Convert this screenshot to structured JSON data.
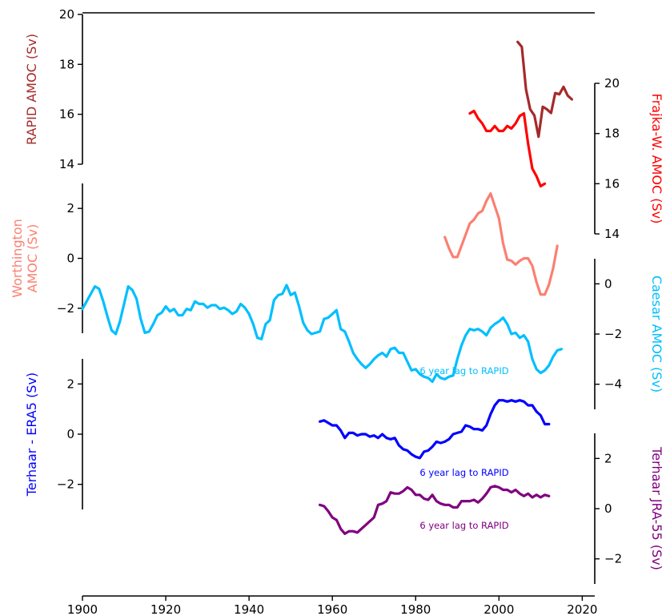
{
  "chart_data": {
    "type": "line",
    "x_axis": {
      "ticks": [
        1900,
        1920,
        1940,
        1960,
        1980,
        2000,
        2020
      ],
      "range": [
        1900,
        2023
      ]
    },
    "panels": [
      {
        "id": "rapid",
        "side": "left",
        "ylabel": "RAPID AMOC (Sv)",
        "color": "#a52a2a",
        "yrange": [
          14,
          20
        ],
        "ticks": [
          14,
          16,
          18,
          20
        ],
        "series": [
          {
            "name": "RAPID AMOC",
            "color": "#a52a2a",
            "x": [
              2004.5,
              2005.5,
              2006.5,
              2007.5,
              2008.5,
              2009.5,
              2010.5,
              2011.5,
              2012.5,
              2013.5,
              2014.5,
              2015.5,
              2016.5,
              2017.5
            ],
            "y": [
              18.9,
              18.7,
              17.0,
              16.2,
              15.95,
              15.1,
              16.3,
              16.2,
              16.05,
              16.85,
              16.8,
              17.1,
              16.75,
              16.6
            ]
          }
        ]
      },
      {
        "id": "frajka",
        "side": "right",
        "ylabel": "Frajka-W. AMOC (Sv)",
        "color": "#ff0000",
        "yrange": [
          14,
          20
        ],
        "ticks": [
          14,
          16,
          18,
          20
        ],
        "series": [
          {
            "name": "Frajka-W. AMOC",
            "color": "#ff0000",
            "x": [
              1993,
              1994,
              1995,
              1996,
              1997,
              1998,
              1999,
              2000,
              2001,
              2002,
              2003,
              2004,
              2005,
              2006,
              2007,
              2008,
              2009,
              2010,
              2011
            ],
            "y": [
              18.8,
              18.9,
              18.6,
              18.4,
              18.1,
              18.1,
              18.3,
              18.1,
              18.1,
              18.3,
              18.2,
              18.4,
              18.7,
              18.8,
              17.6,
              16.6,
              16.3,
              15.9,
              16.0
            ]
          }
        ]
      },
      {
        "id": "worthington",
        "side": "left",
        "ylabel": "Worthington AMOC (Sv)",
        "ylabel_lines": [
          "Worthington",
          "AMOC (Sv)"
        ],
        "color": "#fa8072",
        "yrange": [
          -3,
          3
        ],
        "ticks": [
          -2,
          0,
          2
        ],
        "series": [
          {
            "name": "Worthington AMOC",
            "color": "#fa8072",
            "x": [
              1987,
              1988,
              1989,
              1990,
              1991,
              1992,
              1993,
              1994,
              1995,
              1996,
              1997,
              1998,
              1999,
              2000,
              2001,
              2002,
              2003,
              2004,
              2005,
              2006,
              2007,
              2008,
              2009,
              2010,
              2011,
              2012,
              2013,
              2014
            ],
            "y": [
              0.85,
              0.4,
              0.05,
              0.05,
              0.5,
              0.95,
              1.4,
              1.55,
              1.8,
              1.9,
              2.3,
              2.6,
              2.1,
              1.6,
              0.6,
              -0.05,
              -0.1,
              -0.25,
              -0.1,
              0.0,
              0.0,
              -0.3,
              -0.95,
              -1.45,
              -1.45,
              -1.05,
              -0.4,
              0.5
            ]
          }
        ]
      },
      {
        "id": "caesar",
        "side": "right",
        "ylabel": "Caesar AMOC (Sv)",
        "color": "#00bfff",
        "yrange": [
          -5,
          1
        ],
        "ticks": [
          -4,
          -2,
          0
        ],
        "annotation": "6 year lag to RAPID",
        "series": [
          {
            "name": "Caesar AMOC",
            "color": "#00bfff",
            "x": [
              1900,
              1901,
              1902,
              1903,
              1904,
              1905,
              1906,
              1907,
              1908,
              1909,
              1910,
              1911,
              1912,
              1913,
              1914,
              1915,
              1916,
              1917,
              1918,
              1919,
              1920,
              1921,
              1922,
              1923,
              1924,
              1925,
              1926,
              1927,
              1928,
              1929,
              1930,
              1931,
              1932,
              1933,
              1934,
              1935,
              1936,
              1937,
              1938,
              1939,
              1940,
              1941,
              1942,
              1943,
              1944,
              1945,
              1946,
              1947,
              1948,
              1949,
              1950,
              1951,
              1952,
              1953,
              1954,
              1955,
              1956,
              1957,
              1958,
              1959,
              1960,
              1961,
              1962,
              1963,
              1964,
              1965,
              1966,
              1967,
              1968,
              1969,
              1970,
              1971,
              1972,
              1973,
              1974,
              1975,
              1976,
              1977,
              1978,
              1979,
              1980,
              1981,
              1982,
              1983,
              1984,
              1985,
              1986,
              1987,
              1988,
              1989,
              1990,
              1991,
              1992,
              1993,
              1994,
              1995,
              1996,
              1997,
              1998,
              1999,
              2000,
              2001,
              2002,
              2003,
              2004,
              2005,
              2006,
              2007,
              2008,
              2009,
              2010,
              2011,
              2012,
              2013,
              2014,
              2015
            ],
            "y": [
              -1.0,
              -0.7,
              -0.4,
              -0.1,
              -0.2,
              -0.7,
              -1.3,
              -1.85,
              -2.0,
              -1.5,
              -0.8,
              -0.1,
              -0.25,
              -0.6,
              -1.4,
              -1.95,
              -1.9,
              -1.6,
              -1.25,
              -1.15,
              -0.9,
              -1.1,
              -1.0,
              -1.25,
              -1.25,
              -1.0,
              -1.05,
              -0.7,
              -0.8,
              -0.8,
              -0.95,
              -0.85,
              -0.85,
              -1.0,
              -0.95,
              -1.05,
              -1.2,
              -1.1,
              -0.8,
              -0.95,
              -1.2,
              -1.6,
              -2.15,
              -2.2,
              -1.6,
              -1.45,
              -0.65,
              -0.45,
              -0.4,
              -0.05,
              -0.45,
              -0.35,
              -0.9,
              -1.55,
              -1.85,
              -2.0,
              -1.95,
              -1.9,
              -1.4,
              -1.35,
              -1.2,
              -1.05,
              -1.8,
              -1.9,
              -2.3,
              -2.75,
              -3.0,
              -3.2,
              -3.35,
              -3.2,
              -3.0,
              -2.85,
              -2.75,
              -2.9,
              -2.6,
              -2.55,
              -2.75,
              -2.75,
              -3.1,
              -3.45,
              -3.4,
              -3.6,
              -3.7,
              -3.75,
              -3.9,
              -3.6,
              -3.75,
              -3.8,
              -3.7,
              -3.65,
              -3.0,
              -2.45,
              -2.05,
              -1.8,
              -1.85,
              -1.8,
              -1.9,
              -2.05,
              -1.75,
              -1.6,
              -1.5,
              -1.35,
              -1.6,
              -2.0,
              -1.95,
              -2.15,
              -2.05,
              -2.3,
              -3.0,
              -3.4,
              -3.55,
              -3.45,
              -3.25,
              -2.9,
              -2.65,
              -2.6
            ]
          }
        ]
      },
      {
        "id": "terhaar_era5",
        "side": "left",
        "ylabel": "Terhaar - ERA5 (Sv)",
        "color": "#0000ff",
        "yrange": [
          -3,
          3
        ],
        "ticks": [
          -2,
          0,
          2
        ],
        "annotation": "6 year lag to RAPID",
        "series": [
          {
            "name": "Terhaar - ERA5",
            "color": "#0000ff",
            "x": [
              1957,
              1958,
              1959,
              1960,
              1961,
              1962,
              1963,
              1964,
              1965,
              1966,
              1967,
              1968,
              1969,
              1970,
              1971,
              1972,
              1973,
              1974,
              1975,
              1976,
              1977,
              1978,
              1979,
              1980,
              1981,
              1982,
              1983,
              1984,
              1985,
              1986,
              1987,
              1988,
              1989,
              1990,
              1991,
              1992,
              1993,
              1994,
              1995,
              1996,
              1997,
              1998,
              1999,
              2000,
              2001,
              2002,
              2003,
              2004,
              2005,
              2006,
              2007,
              2008,
              2009,
              2010,
              2011,
              2012
            ],
            "y": [
              0.5,
              0.55,
              0.45,
              0.35,
              0.35,
              0.15,
              -0.15,
              0.05,
              0.05,
              -0.05,
              0.0,
              0.0,
              -0.1,
              -0.05,
              -0.15,
              0.0,
              -0.15,
              -0.2,
              -0.15,
              -0.45,
              -0.6,
              -0.65,
              -0.8,
              -0.9,
              -0.95,
              -0.7,
              -0.65,
              -0.5,
              -0.3,
              -0.35,
              -0.3,
              -0.2,
              0.0,
              0.05,
              0.1,
              0.35,
              0.3,
              0.2,
              0.2,
              0.15,
              0.35,
              0.8,
              1.15,
              1.35,
              1.35,
              1.3,
              1.35,
              1.3,
              1.35,
              1.3,
              1.15,
              1.15,
              0.9,
              0.75,
              0.4,
              0.4
            ]
          }
        ]
      },
      {
        "id": "terhaar_jra55",
        "side": "right",
        "ylabel": "Terhaar JRA-55 (Sv)",
        "color": "#800080",
        "yrange": [
          -3,
          3
        ],
        "ticks": [
          -2,
          0,
          2
        ],
        "annotation": "6 year lag to RAPID",
        "series": [
          {
            "name": "Terhaar JRA-55",
            "color": "#800080",
            "x": [
              1957,
              1958,
              1959,
              1960,
              1961,
              1962,
              1963,
              1964,
              1965,
              1966,
              1967,
              1968,
              1969,
              1970,
              1971,
              1972,
              1973,
              1974,
              1975,
              1976,
              1977,
              1978,
              1979,
              1980,
              1981,
              1982,
              1983,
              1984,
              1985,
              1986,
              1987,
              1988,
              1989,
              1990,
              1991,
              1992,
              1993,
              1994,
              1995,
              1996,
              1997,
              1998,
              1999,
              2000,
              2001,
              2002,
              2003,
              2004,
              2005,
              2006,
              2007,
              2008,
              2009,
              2010,
              2011,
              2012
            ],
            "y": [
              0.15,
              0.1,
              -0.1,
              -0.35,
              -0.45,
              -0.8,
              -1.0,
              -0.9,
              -0.9,
              -0.95,
              -0.8,
              -0.65,
              -0.5,
              -0.35,
              0.15,
              0.2,
              0.3,
              0.65,
              0.6,
              0.6,
              0.7,
              0.85,
              0.75,
              0.55,
              0.55,
              0.4,
              0.35,
              0.55,
              0.3,
              0.2,
              0.15,
              0.15,
              0.05,
              0.05,
              0.3,
              0.3,
              0.3,
              0.35,
              0.25,
              0.4,
              0.6,
              0.85,
              0.9,
              0.85,
              0.75,
              0.75,
              0.65,
              0.75,
              0.6,
              0.5,
              0.6,
              0.45,
              0.55,
              0.45,
              0.55,
              0.5
            ]
          }
        ]
      }
    ]
  }
}
